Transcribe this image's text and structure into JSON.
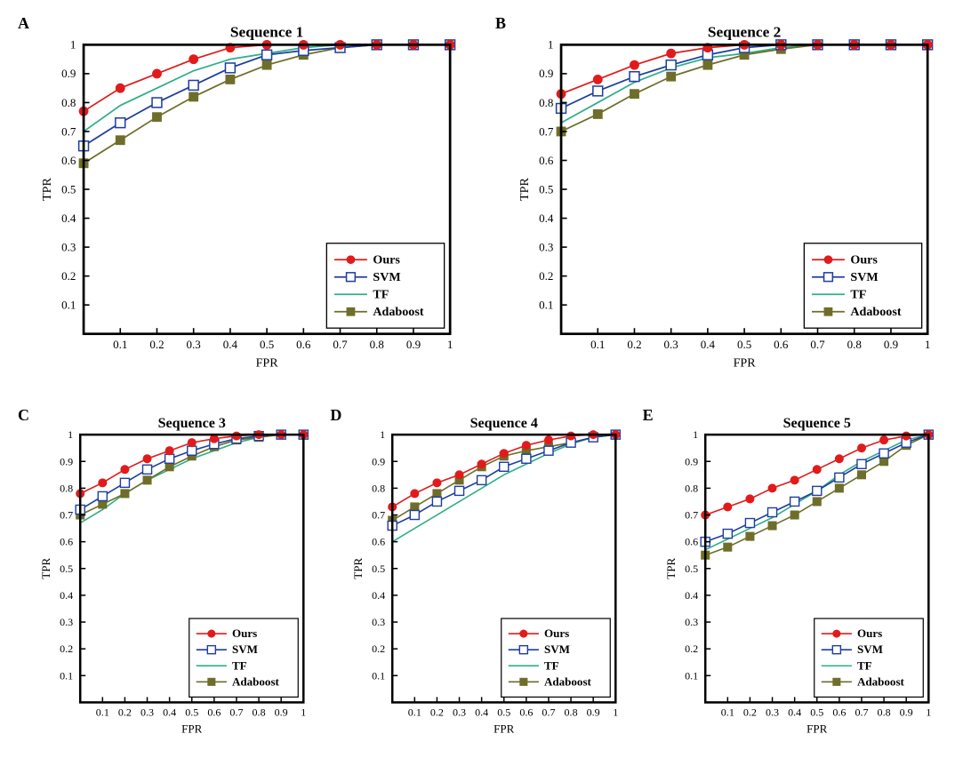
{
  "global": {
    "xlabel": "FPR",
    "ylabel": "TPR",
    "xlim": [
      0,
      1
    ],
    "ylim": [
      0,
      1
    ],
    "xtick_step": 0.1,
    "ytick_step": 0.1,
    "axis_color": "#000000",
    "axis_linewidth": 2.5,
    "tick_fontsize": 12,
    "label_fontsize": 13,
    "title_fontsize": 16,
    "panel_label_fontsize": 18,
    "panel_label_fontweight": "bold",
    "marker_size": 5,
    "line_width": 1.6,
    "legend_border_color": "#000000",
    "legend_border_width": 1.2,
    "legend_fontsize": 13,
    "legend_fontweight": "bold",
    "background_color": "#ffffff",
    "series_style": {
      "ours": {
        "color": "#e11b1b",
        "marker": "circle-filled",
        "label": "Ours"
      },
      "svm": {
        "color": "#1e3f9e",
        "marker": "square-open",
        "label": "SVM"
      },
      "tf": {
        "color": "#2fae8a",
        "marker": "none",
        "label": "TF"
      },
      "adaboost": {
        "color": "#6e6e2a",
        "marker": "square-filled",
        "label": "Adaboost"
      }
    },
    "x_points": [
      0.0,
      0.1,
      0.2,
      0.3,
      0.4,
      0.5,
      0.6,
      0.7,
      0.8,
      0.9,
      1.0
    ]
  },
  "panels": [
    {
      "id": "A",
      "title": "Sequence 1",
      "series": {
        "ours": [
          0.77,
          0.85,
          0.9,
          0.95,
          0.99,
          1.0,
          1.0,
          1.0,
          1.0,
          1.0,
          1.0
        ],
        "svm": [
          0.65,
          0.73,
          0.8,
          0.86,
          0.92,
          0.965,
          0.98,
          0.99,
          1.0,
          1.0,
          1.0
        ],
        "tf": [
          0.7,
          0.79,
          0.85,
          0.91,
          0.95,
          0.97,
          0.99,
          1.0,
          1.0,
          1.0,
          1.0
        ],
        "adaboost": [
          0.59,
          0.67,
          0.75,
          0.82,
          0.88,
          0.93,
          0.965,
          0.99,
          1.0,
          1.0,
          1.0
        ]
      }
    },
    {
      "id": "B",
      "title": "Sequence 2",
      "series": {
        "ours": [
          0.83,
          0.88,
          0.93,
          0.97,
          0.99,
          1.0,
          1.0,
          1.0,
          1.0,
          1.0,
          1.0
        ],
        "svm": [
          0.78,
          0.84,
          0.89,
          0.93,
          0.965,
          0.99,
          1.0,
          1.0,
          1.0,
          1.0,
          1.0
        ],
        "tf": [
          0.73,
          0.8,
          0.87,
          0.92,
          0.955,
          0.97,
          0.99,
          1.0,
          1.0,
          1.0,
          1.0
        ],
        "adaboost": [
          0.7,
          0.76,
          0.83,
          0.89,
          0.93,
          0.965,
          0.985,
          1.0,
          1.0,
          1.0,
          1.0
        ]
      }
    },
    {
      "id": "C",
      "title": "Sequence 3",
      "series": {
        "ours": [
          0.78,
          0.82,
          0.87,
          0.91,
          0.94,
          0.97,
          0.985,
          0.995,
          1.0,
          1.0,
          1.0
        ],
        "svm": [
          0.72,
          0.77,
          0.82,
          0.87,
          0.91,
          0.94,
          0.965,
          0.985,
          0.995,
          1.0,
          1.0
        ],
        "tf": [
          0.67,
          0.72,
          0.78,
          0.83,
          0.87,
          0.91,
          0.94,
          0.97,
          0.99,
          1.0,
          1.0
        ],
        "adaboost": [
          0.7,
          0.74,
          0.78,
          0.83,
          0.88,
          0.92,
          0.955,
          0.98,
          0.99,
          1.0,
          1.0
        ]
      }
    },
    {
      "id": "D",
      "title": "Sequence 4",
      "series": {
        "ours": [
          0.73,
          0.78,
          0.82,
          0.85,
          0.89,
          0.93,
          0.96,
          0.98,
          0.995,
          1.0,
          1.0
        ],
        "svm": [
          0.66,
          0.7,
          0.75,
          0.79,
          0.83,
          0.88,
          0.91,
          0.94,
          0.97,
          0.99,
          1.0
        ],
        "tf": [
          0.6,
          0.65,
          0.7,
          0.75,
          0.8,
          0.85,
          0.89,
          0.93,
          0.965,
          0.99,
          1.0
        ],
        "adaboost": [
          0.68,
          0.73,
          0.78,
          0.83,
          0.88,
          0.92,
          0.94,
          0.955,
          0.97,
          0.99,
          1.0
        ]
      }
    },
    {
      "id": "E",
      "title": "Sequence 5",
      "series": {
        "ours": [
          0.7,
          0.73,
          0.76,
          0.8,
          0.83,
          0.87,
          0.91,
          0.95,
          0.98,
          0.995,
          1.0
        ],
        "svm": [
          0.6,
          0.63,
          0.67,
          0.71,
          0.75,
          0.79,
          0.84,
          0.89,
          0.93,
          0.97,
          1.0
        ],
        "tf": [
          0.57,
          0.61,
          0.65,
          0.69,
          0.74,
          0.79,
          0.85,
          0.9,
          0.94,
          0.98,
          1.0
        ],
        "adaboost": [
          0.55,
          0.58,
          0.62,
          0.66,
          0.7,
          0.75,
          0.8,
          0.85,
          0.9,
          0.96,
          1.0
        ]
      }
    }
  ]
}
